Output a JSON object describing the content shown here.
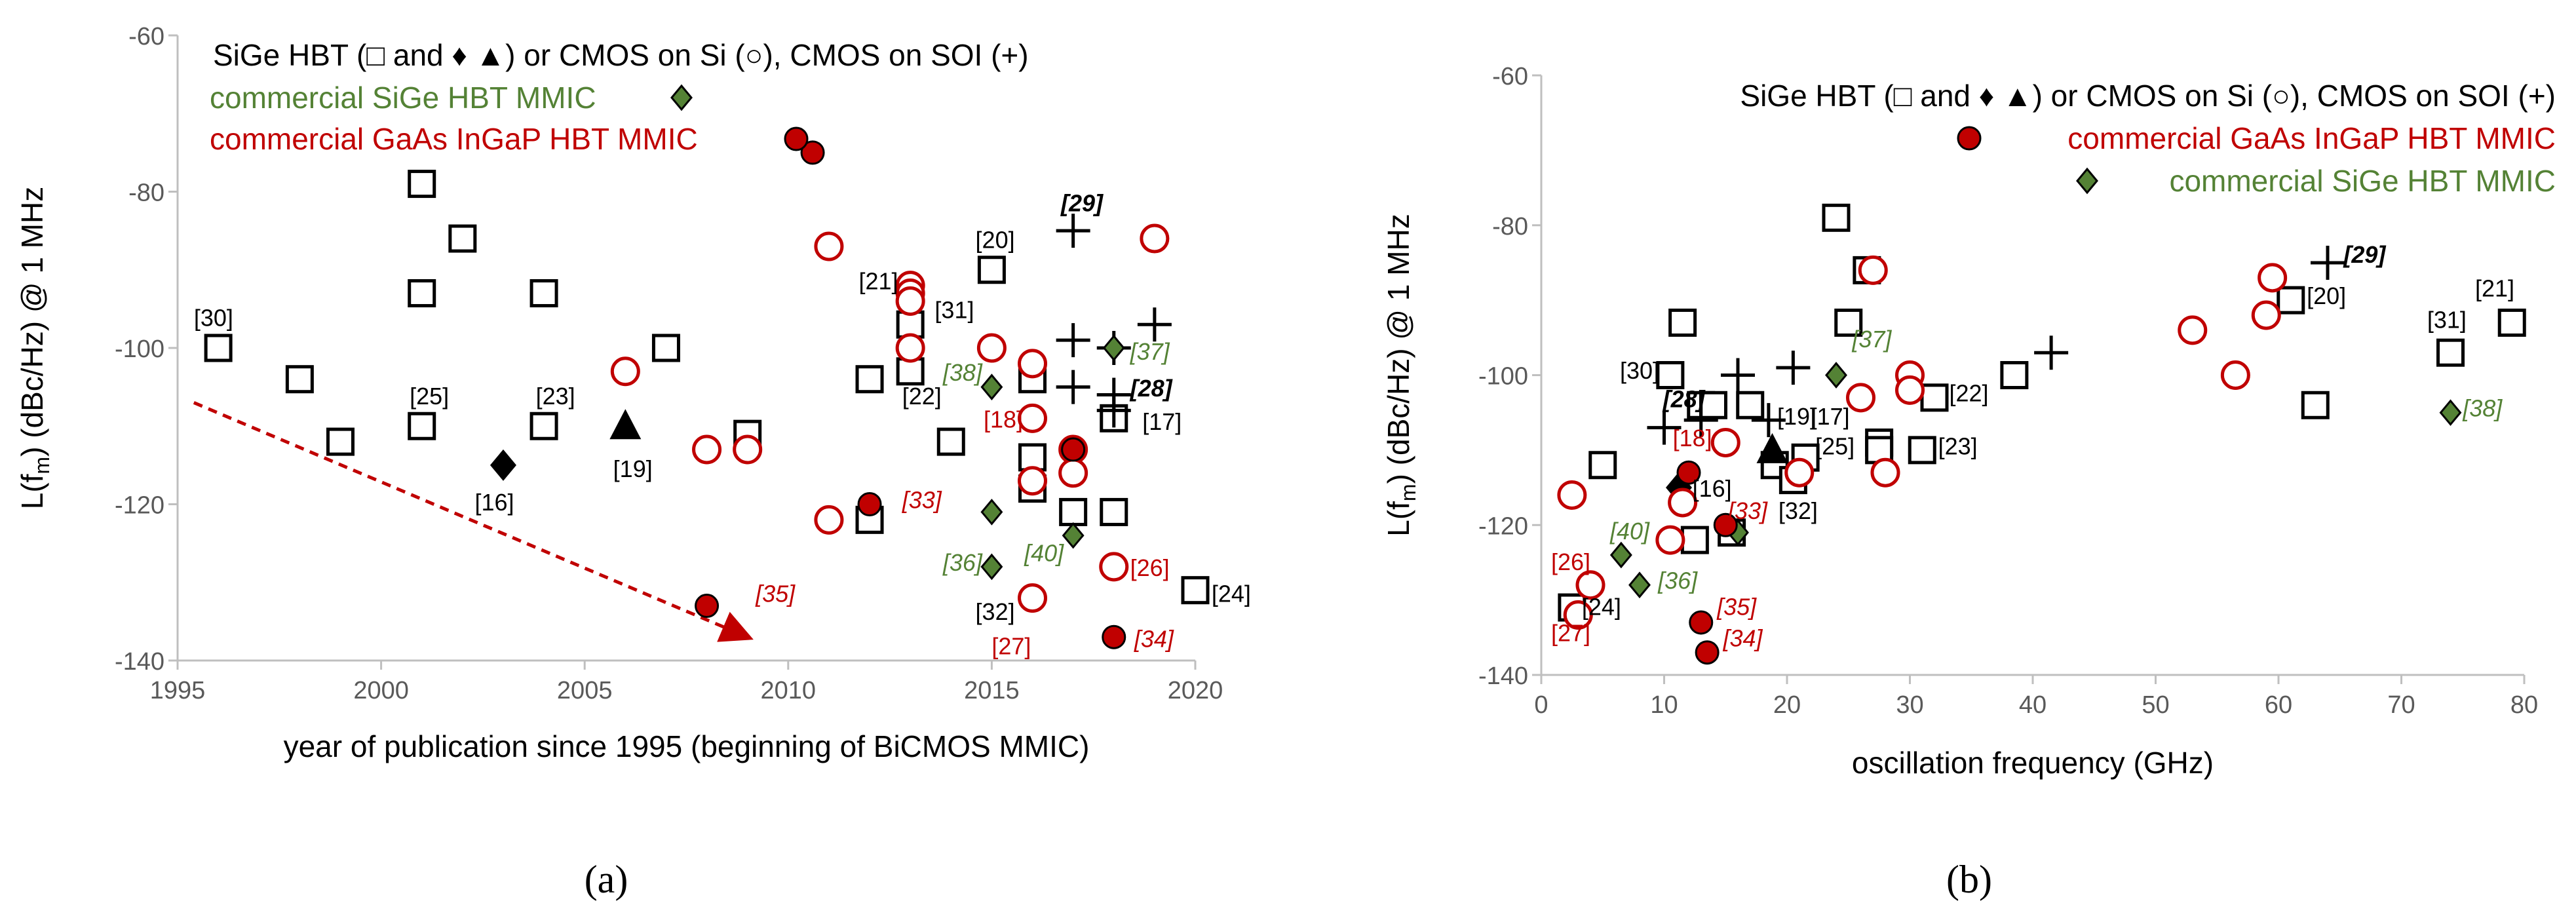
{
  "colors": {
    "black": "#000000",
    "red": "#c00000",
    "green": "#548235",
    "darkred": "#c00000",
    "axis": "#bfbfbf"
  },
  "chart_data": [
    {
      "id": "a",
      "type": "scatter",
      "caption": "(a)",
      "xlabel": "year of publication since 1995 (beginning of BiCMOS MMIC)",
      "ylabel_parts": [
        "L(f",
        "m",
        ") (dBc/Hz)  @ 1 MHz"
      ],
      "xlim": [
        1995,
        2020
      ],
      "ylim": [
        -140,
        -60
      ],
      "xticks": [
        1995,
        2000,
        2005,
        2010,
        2015,
        2020
      ],
      "yticks": [
        -140,
        -120,
        -100,
        -80,
        -60
      ],
      "legend": [
        {
          "text": "SiGe HBT (□ and ♦ ▲) or CMOS on Si (○), CMOS on SOI (+)",
          "color": "black",
          "marker": "none"
        },
        {
          "text": "commercial SiGe HBT MMIC",
          "color": "green",
          "marker": "diamond-green"
        },
        {
          "text": "commercial GaAs InGaP HBT MMIC",
          "color": "red",
          "marker": "dot-red"
        }
      ],
      "trend": {
        "from": [
          1995.4,
          -107
        ],
        "to": [
          2009.0,
          -137
        ]
      },
      "series": [
        {
          "name": "SiGe HBT (square)",
          "marker": "square",
          "points": [
            [
              1996,
              -100
            ],
            [
              1998,
              -104
            ],
            [
              1999,
              -112
            ],
            [
              2001,
              -79
            ],
            [
              2001,
              -93
            ],
            [
              2001,
              -110
            ],
            [
              2002,
              -86
            ],
            [
              2004,
              -93
            ],
            [
              2004,
              -110
            ],
            [
              2007,
              -100
            ],
            [
              2009,
              -111
            ],
            [
              2012,
              -104
            ],
            [
              2012,
              -122
            ],
            [
              2013,
              -97
            ],
            [
              2013,
              -103
            ],
            [
              2014,
              -112
            ],
            [
              2015,
              -90
            ],
            [
              2016,
              -104
            ],
            [
              2016,
              -114
            ],
            [
              2016,
              -118
            ],
            [
              2017,
              -121
            ],
            [
              2018,
              -109
            ],
            [
              2018,
              -121
            ],
            [
              2020,
              -131
            ]
          ]
        },
        {
          "name": "SiGe HBT (diamond)",
          "marker": "diamond",
          "points": [
            [
              2003,
              -115
            ]
          ]
        },
        {
          "name": "SiGe HBT (triangle)",
          "marker": "triangle",
          "points": [
            [
              2006,
              -110
            ]
          ]
        },
        {
          "name": "CMOS on Si",
          "marker": "circle",
          "points": [
            [
              2006,
              -103
            ],
            [
              2008,
              -113
            ],
            [
              2009,
              -113
            ],
            [
              2011,
              -87
            ],
            [
              2011,
              -122
            ],
            [
              2013,
              -92
            ],
            [
              2013,
              -93
            ],
            [
              2013,
              -94
            ],
            [
              2013,
              -100
            ],
            [
              2015,
              -100
            ],
            [
              2016,
              -102
            ],
            [
              2016,
              -109
            ],
            [
              2016,
              -117
            ],
            [
              2016,
              -132
            ],
            [
              2017,
              -113
            ],
            [
              2017,
              -116
            ],
            [
              2018,
              -128
            ],
            [
              2019,
              -86
            ]
          ]
        },
        {
          "name": "CMOS on SOI",
          "marker": "plus",
          "points": [
            [
              2017,
              -85
            ],
            [
              2017,
              -99
            ],
            [
              2017,
              -105
            ],
            [
              2018,
              -100
            ],
            [
              2018,
              -106
            ],
            [
              2018,
              -108
            ],
            [
              2019,
              -97
            ]
          ]
        },
        {
          "name": "commercial SiGe HBT MMIC",
          "marker": "diamond-green",
          "points": [
            [
              2015,
              -105
            ],
            [
              2015,
              -121
            ],
            [
              2015,
              -128
            ],
            [
              2017,
              -124
            ],
            [
              2018,
              -100
            ]
          ]
        },
        {
          "name": "commercial GaAs InGaP HBT MMIC",
          "marker": "dot-red",
          "points": [
            [
              2008,
              -133
            ],
            [
              2010.6,
              -75
            ],
            [
              2012,
              -120
            ],
            [
              2017,
              -113
            ],
            [
              2018,
              -137
            ]
          ]
        }
      ],
      "annotations": [
        {
          "text": "[30]",
          "x": 1995.4,
          "y": -97.2,
          "color": "black",
          "anchor": "start"
        },
        {
          "text": "[25]",
          "x": 2000.7,
          "y": -107.2,
          "color": "black",
          "anchor": "start"
        },
        {
          "text": "[23]",
          "x": 2003.8,
          "y": -107.2,
          "color": "black",
          "anchor": "start"
        },
        {
          "text": "[16]",
          "x": 2002.3,
          "y": -120.8,
          "color": "black",
          "anchor": "start"
        },
        {
          "text": "[19]",
          "x": 2005.7,
          "y": -116.5,
          "color": "black",
          "anchor": "start"
        },
        {
          "text": "[35]",
          "x": 2009.2,
          "y": -132.5,
          "color": "red",
          "anchor": "start",
          "italic": true
        },
        {
          "text": "[20]",
          "x": 2014.6,
          "y": -87.2,
          "color": "black",
          "anchor": "start"
        },
        {
          "text": "[29]",
          "x": 2016.7,
          "y": -82.5,
          "color": "black",
          "anchor": "start",
          "bold": true,
          "italic": true
        },
        {
          "text": "[21]",
          "x": 2012.7,
          "y": -92.5,
          "color": "black",
          "anchor": "end"
        },
        {
          "text": "[31]",
          "x": 2013.6,
          "y": -96.2,
          "color": "black",
          "anchor": "start"
        },
        {
          "text": "[38]",
          "x": 2013.8,
          "y": -104.2,
          "color": "green",
          "anchor": "start",
          "italic": true
        },
        {
          "text": "[22]",
          "x": 2012.8,
          "y": -107.2,
          "color": "black",
          "anchor": "start"
        },
        {
          "text": "[18]",
          "x": 2014.8,
          "y": -110.2,
          "color": "red",
          "anchor": "start"
        },
        {
          "text": "[37]",
          "x": 2018.4,
          "y": -101.5,
          "color": "green",
          "anchor": "start",
          "italic": true
        },
        {
          "text": "[28]",
          "x": 2018.4,
          "y": -106.2,
          "color": "black",
          "anchor": "start",
          "bold": true,
          "italic": true
        },
        {
          "text": "[17]",
          "x": 2018.7,
          "y": -110.5,
          "color": "black",
          "anchor": "start"
        },
        {
          "text": "[33]",
          "x": 2012.8,
          "y": -120.5,
          "color": "red",
          "anchor": "start",
          "italic": true
        },
        {
          "text": "[36]",
          "x": 2013.8,
          "y": -128.5,
          "color": "green",
          "anchor": "start",
          "italic": true
        },
        {
          "text": "[40]",
          "x": 2015.8,
          "y": -127.3,
          "color": "green",
          "anchor": "start",
          "italic": true
        },
        {
          "text": "[26]",
          "x": 2018.4,
          "y": -129.2,
          "color": "red",
          "anchor": "start"
        },
        {
          "text": "[32]",
          "x": 2014.6,
          "y": -134.8,
          "color": "black",
          "anchor": "start"
        },
        {
          "text": "[27]",
          "x": 2015.0,
          "y": -139.2,
          "color": "red",
          "anchor": "start"
        },
        {
          "text": "[24]",
          "x": 2020.4,
          "y": -132.5,
          "color": "black",
          "anchor": "start"
        },
        {
          "text": "[34]",
          "x": 2018.5,
          "y": -138.3,
          "color": "red",
          "anchor": "start",
          "italic": true
        }
      ]
    },
    {
      "id": "b",
      "type": "scatter",
      "caption": "(b)",
      "xlabel": "oscillation frequency (GHz)",
      "ylabel_parts": [
        "L(f",
        "m",
        ") (dBc/Hz) @ 1 MHz"
      ],
      "xlim": [
        0,
        80
      ],
      "ylim": [
        -140,
        -60
      ],
      "xticks": [
        0,
        10,
        20,
        30,
        40,
        50,
        60,
        70,
        80
      ],
      "yticks": [
        -140,
        -120,
        -100,
        -80,
        -60
      ],
      "legend": [
        {
          "text": "SiGe HBT (□ and ♦ ▲) or CMOS on Si (○), CMOS on SOI (+)",
          "color": "black",
          "marker": "none"
        },
        {
          "text": "commercial GaAs InGaP HBT MMIC",
          "color": "red",
          "marker": "dot-red"
        },
        {
          "text": "commercial SiGe HBT MMIC",
          "color": "green",
          "marker": "diamond-green"
        }
      ],
      "series": [
        {
          "name": "SiGe HBT (square)",
          "marker": "square",
          "points": [
            [
              2.5,
              -131
            ],
            [
              5,
              -112
            ],
            [
              10.5,
              -100
            ],
            [
              11.5,
              -93
            ],
            [
              13,
              -104
            ],
            [
              12.5,
              -122
            ],
            [
              14,
              -104
            ],
            [
              15.5,
              -121
            ],
            [
              17,
              -104
            ],
            [
              19,
              -112
            ],
            [
              20.5,
              -114
            ],
            [
              21.5,
              -111
            ],
            [
              24,
              -79
            ],
            [
              25,
              -93
            ],
            [
              26.5,
              -86
            ],
            [
              27.5,
              -109
            ],
            [
              27.5,
              -110
            ],
            [
              31,
              -110
            ],
            [
              32,
              -103
            ],
            [
              38.5,
              -100
            ],
            [
              61,
              -90
            ],
            [
              63,
              -104
            ],
            [
              74,
              -97
            ],
            [
              79,
              -93
            ]
          ]
        },
        {
          "name": "SiGe HBT (diamond)",
          "marker": "diamond",
          "points": [
            [
              11.2,
              -115
            ]
          ]
        },
        {
          "name": "SiGe HBT (triangle)",
          "marker": "triangle",
          "points": [
            [
              18.8,
              -110
            ]
          ]
        },
        {
          "name": "CMOS on Si",
          "marker": "circle",
          "points": [
            [
              2.5,
              -116
            ],
            [
              3,
              -132
            ],
            [
              4,
              -128
            ],
            [
              10.5,
              -122
            ],
            [
              11.5,
              -117
            ],
            [
              15,
              -109
            ],
            [
              21,
              -113
            ],
            [
              26,
              -103
            ],
            [
              27,
              -86
            ],
            [
              28,
              -113
            ],
            [
              30,
              -100
            ],
            [
              30,
              -102
            ],
            [
              53,
              -94
            ],
            [
              56.5,
              -100
            ],
            [
              59,
              -92
            ],
            [
              59.5,
              -87
            ]
          ]
        },
        {
          "name": "CMOS on SOI",
          "marker": "plus",
          "points": [
            [
              10,
              -107
            ],
            [
              13,
              -106
            ],
            [
              16,
              -100
            ],
            [
              18.5,
              -106
            ],
            [
              20.5,
              -99
            ],
            [
              41.5,
              -97
            ],
            [
              64,
              -85
            ]
          ]
        },
        {
          "name": "commercial SiGe HBT MMIC",
          "marker": "diamond-green",
          "points": [
            [
              6.5,
              -124
            ],
            [
              8,
              -128
            ],
            [
              16,
              -121
            ],
            [
              24,
              -100
            ],
            [
              74,
              -105
            ]
          ]
        },
        {
          "name": "commercial GaAs InGaP HBT MMIC",
          "marker": "dot-red",
          "points": [
            [
              12,
              -113
            ],
            [
              13,
              -133
            ],
            [
              13.5,
              -137
            ],
            [
              15,
              -120
            ]
          ]
        }
      ],
      "annotations": [
        {
          "text": "[29]",
          "x": 65.3,
          "y": -85,
          "color": "black",
          "anchor": "start",
          "bold": true,
          "italic": true
        },
        {
          "text": "[20]",
          "x": 62.3,
          "y": -90.5,
          "color": "black",
          "anchor": "start"
        },
        {
          "text": "[21]",
          "x": 79.2,
          "y": -89.5,
          "color": "black",
          "anchor": "end"
        },
        {
          "text": "[31]",
          "x": 75.3,
          "y": -93.7,
          "color": "black",
          "anchor": "end"
        },
        {
          "text": "[38]",
          "x": 75.0,
          "y": -105.5,
          "color": "green",
          "anchor": "start",
          "italic": true
        },
        {
          "text": "[37]",
          "x": 25.3,
          "y": -96.3,
          "color": "green",
          "anchor": "start",
          "italic": true
        },
        {
          "text": "[30]",
          "x": 9.6,
          "y": -100.5,
          "color": "black",
          "anchor": "end"
        },
        {
          "text": "[28]",
          "x": 9.9,
          "y": -104.3,
          "color": "black",
          "anchor": "start",
          "bold": true,
          "italic": true
        },
        {
          "text": "[22]",
          "x": 33.2,
          "y": -103.5,
          "color": "black",
          "anchor": "start"
        },
        {
          "text": "[19]",
          "x": 19.2,
          "y": -106.6,
          "color": "black",
          "anchor": "start"
        },
        {
          "text": "[17]",
          "x": 21.9,
          "y": -106.6,
          "color": "black",
          "anchor": "start"
        },
        {
          "text": "[25]",
          "x": 22.3,
          "y": -110.6,
          "color": "black",
          "anchor": "start"
        },
        {
          "text": "[18]",
          "x": 10.7,
          "y": -109.5,
          "color": "red",
          "anchor": "start"
        },
        {
          "text": "[23]",
          "x": 32.3,
          "y": -110.6,
          "color": "black",
          "anchor": "start"
        },
        {
          "text": "[16]",
          "x": 12.3,
          "y": -116.2,
          "color": "black",
          "anchor": "start"
        },
        {
          "text": "[32]",
          "x": 19.3,
          "y": -119.2,
          "color": "black",
          "anchor": "start"
        },
        {
          "text": "[33]",
          "x": 15.2,
          "y": -119.2,
          "color": "red",
          "anchor": "start",
          "italic": true
        },
        {
          "text": "[40]",
          "x": 5.6,
          "y": -121.9,
          "color": "green",
          "anchor": "start",
          "italic": true
        },
        {
          "text": "[26]",
          "x": 0.8,
          "y": -126.0,
          "color": "red",
          "anchor": "start"
        },
        {
          "text": "[36]",
          "x": 9.5,
          "y": -128.5,
          "color": "green",
          "anchor": "start",
          "italic": true
        },
        {
          "text": "[24]",
          "x": 3.3,
          "y": -132.0,
          "color": "black",
          "anchor": "start"
        },
        {
          "text": "[35]",
          "x": 14.3,
          "y": -132.0,
          "color": "red",
          "anchor": "start",
          "italic": true
        },
        {
          "text": "[27]",
          "x": 0.8,
          "y": -135.5,
          "color": "red",
          "anchor": "start"
        },
        {
          "text": "[34]",
          "x": 14.8,
          "y": -136.2,
          "color": "red",
          "anchor": "start",
          "italic": true
        }
      ]
    }
  ]
}
